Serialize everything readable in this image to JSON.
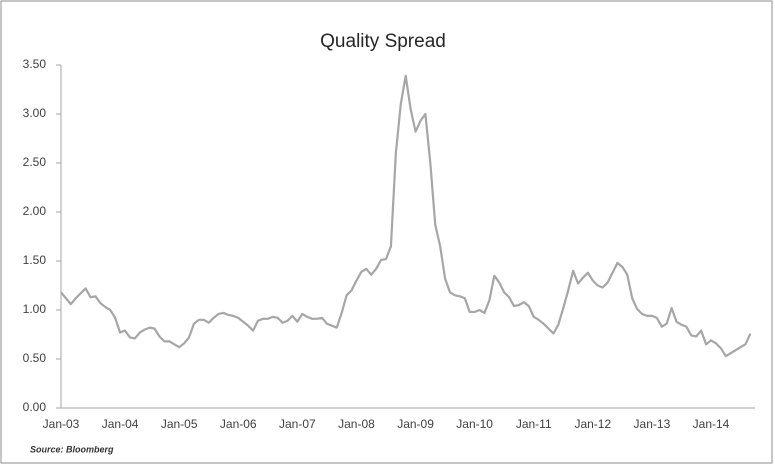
{
  "chart_data": {
    "type": "line",
    "title": "Quality Spread",
    "source": "Source: Bloomberg",
    "categories": [
      "Jan-03",
      null,
      null,
      null,
      null,
      null,
      null,
      null,
      null,
      null,
      null,
      null,
      "Jan-04",
      null,
      null,
      null,
      null,
      null,
      null,
      null,
      null,
      null,
      null,
      null,
      "Jan-05",
      null,
      null,
      null,
      null,
      null,
      null,
      null,
      null,
      null,
      null,
      null,
      "Jan-06",
      null,
      null,
      null,
      null,
      null,
      null,
      null,
      null,
      null,
      null,
      null,
      "Jan-07",
      null,
      null,
      null,
      null,
      null,
      null,
      null,
      null,
      null,
      null,
      null,
      "Jan-08",
      null,
      null,
      null,
      null,
      null,
      null,
      null,
      null,
      null,
      null,
      null,
      "Jan-09",
      null,
      null,
      null,
      null,
      null,
      null,
      null,
      null,
      null,
      null,
      null,
      "Jan-10",
      null,
      null,
      null,
      null,
      null,
      null,
      null,
      null,
      null,
      null,
      null,
      "Jan-11",
      null,
      null,
      null,
      null,
      null,
      null,
      null,
      null,
      null,
      null,
      null,
      "Jan-12",
      null,
      null,
      null,
      null,
      null,
      null,
      null,
      null,
      null,
      null,
      null,
      "Jan-13",
      null,
      null,
      null,
      null,
      null,
      null,
      null,
      null,
      null,
      null,
      null,
      "Jan-14",
      null,
      null,
      null,
      null,
      null,
      null,
      null,
      null
    ],
    "series": [
      {
        "color": "#a6a6a6",
        "values": [
          1.18,
          1.12,
          1.06,
          1.12,
          1.17,
          1.22,
          1.13,
          1.14,
          1.07,
          1.03,
          1.0,
          0.92,
          0.77,
          0.79,
          0.72,
          0.71,
          0.77,
          0.8,
          0.82,
          0.81,
          0.73,
          0.68,
          0.68,
          0.65,
          0.62,
          0.66,
          0.72,
          0.86,
          0.9,
          0.9,
          0.87,
          0.92,
          0.96,
          0.97,
          0.95,
          0.94,
          0.92,
          0.88,
          0.84,
          0.79,
          0.89,
          0.91,
          0.91,
          0.93,
          0.92,
          0.87,
          0.89,
          0.94,
          0.88,
          0.96,
          0.93,
          0.91,
          0.91,
          0.92,
          0.86,
          0.84,
          0.82,
          0.97,
          1.15,
          1.2,
          1.3,
          1.39,
          1.42,
          1.36,
          1.42,
          1.51,
          1.52,
          1.65,
          2.6,
          3.1,
          3.39,
          3.05,
          2.82,
          2.93,
          3.0,
          2.5,
          1.87,
          1.65,
          1.32,
          1.18,
          1.15,
          1.14,
          1.12,
          0.98,
          0.98,
          1.0,
          0.97,
          1.1,
          1.35,
          1.28,
          1.18,
          1.13,
          1.04,
          1.05,
          1.08,
          1.04,
          0.93,
          0.9,
          0.86,
          0.81,
          0.76,
          0.85,
          1.02,
          1.2,
          1.4,
          1.27,
          1.33,
          1.38,
          1.3,
          1.25,
          1.23,
          1.28,
          1.38,
          1.48,
          1.44,
          1.36,
          1.12,
          1.01,
          0.96,
          0.94,
          0.94,
          0.92,
          0.83,
          0.86,
          1.02,
          0.88,
          0.85,
          0.83,
          0.74,
          0.73,
          0.79,
          0.65,
          0.69,
          0.66,
          0.61,
          0.53,
          0.56,
          0.59,
          0.62,
          0.65,
          0.76
        ]
      }
    ],
    "ylim": [
      0,
      3.5
    ],
    "yticks": [
      {
        "value": 0,
        "label": "0.00"
      },
      {
        "value": 0.5,
        "label": "0.50"
      },
      {
        "value": 1,
        "label": "1.00"
      },
      {
        "value": 1.5,
        "label": "1.50"
      },
      {
        "value": 2,
        "label": "2.00"
      },
      {
        "value": 2.5,
        "label": "2.50"
      },
      {
        "value": 3,
        "label": "3.00"
      },
      {
        "value": 3.5,
        "label": "3.50"
      }
    ],
    "grid": false
  }
}
